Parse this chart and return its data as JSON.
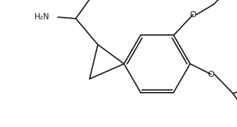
{
  "bg_color": "#ffffff",
  "line_color": "#1a1a1a",
  "text_color": "#1a1a1a",
  "line_width": 1.3,
  "font_size": 8.5,
  "figsize": [
    3.44,
    1.85
  ],
  "dpi": 100,
  "xlim": [
    0,
    344
  ],
  "ylim": [
    0,
    185
  ]
}
